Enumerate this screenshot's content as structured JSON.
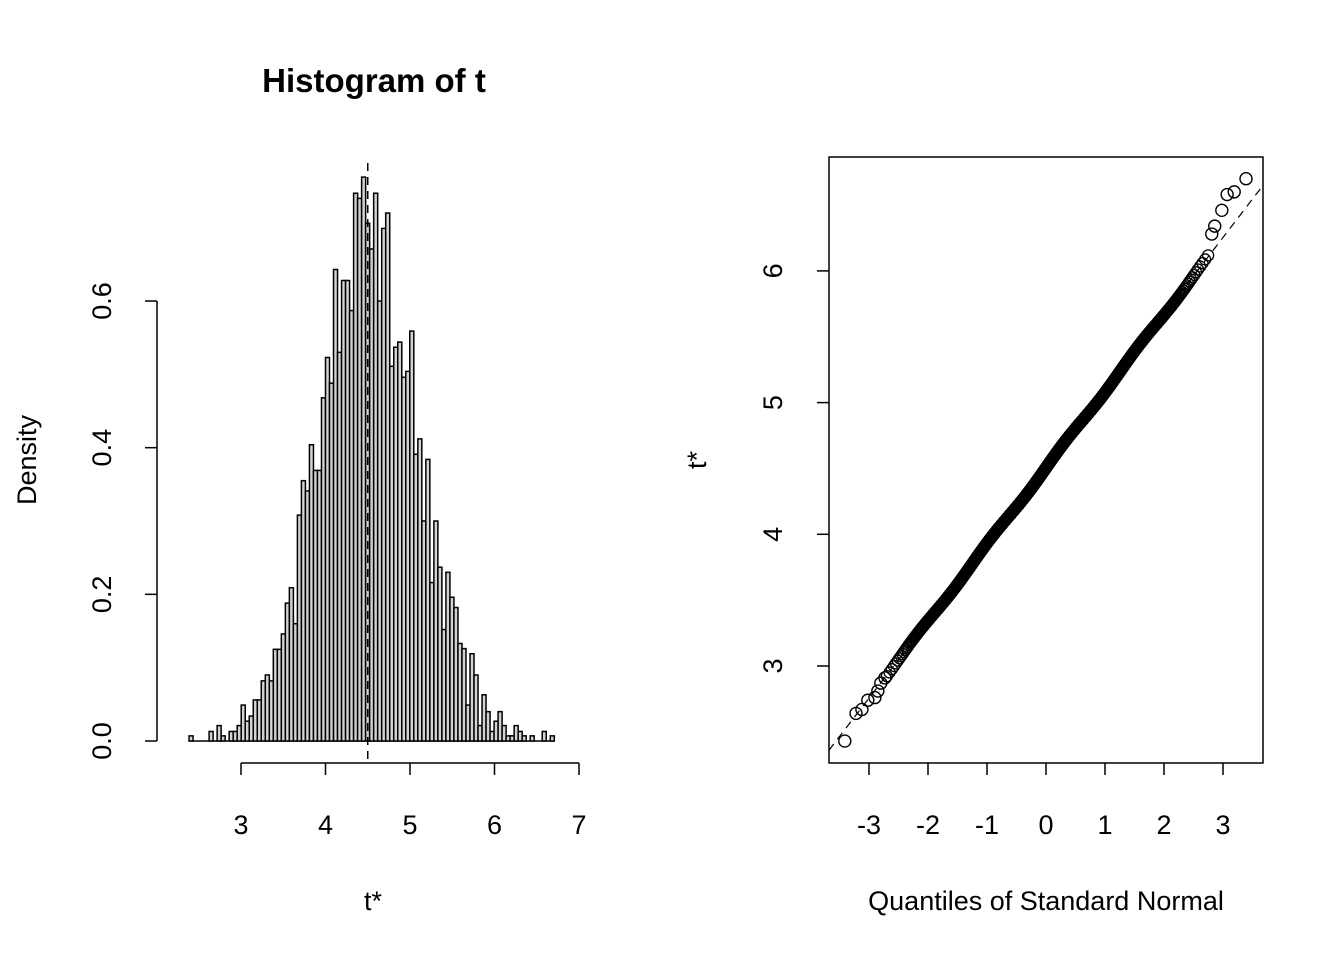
{
  "chart_data": [
    {
      "type": "bar",
      "title": "Histogram of t",
      "xlabel": "t*",
      "ylabel": "Density",
      "xticks": [
        "3",
        "4",
        "5",
        "6",
        "7"
      ],
      "yticks": [
        "0.0",
        "0.2",
        "0.4",
        "0.6"
      ],
      "xlim": [
        3,
        7
      ],
      "ylim": [
        0,
        0.6
      ],
      "breaks_start": 2.385,
      "bin_width": 0.0475,
      "density": [
        0.007,
        0,
        0,
        0,
        0,
        0.013,
        0,
        0.021,
        0.007,
        0,
        0.013,
        0.013,
        0.021,
        0.049,
        0.027,
        0.034,
        0.056,
        0.056,
        0.082,
        0.09,
        0.082,
        0.125,
        0.125,
        0.146,
        0.188,
        0.209,
        0.16,
        0.308,
        0.355,
        0.341,
        0.404,
        0.369,
        0.369,
        0.468,
        0.523,
        0.488,
        0.643,
        0.53,
        0.628,
        0.628,
        0.587,
        0.747,
        0.74,
        0.769,
        0.706,
        0.671,
        0.747,
        0.6,
        0.699,
        0.72,
        0.511,
        0.537,
        0.544,
        0.496,
        0.504,
        0.559,
        0.391,
        0.412,
        0.3,
        0.384,
        0.216,
        0.3,
        0.237,
        0.152,
        0.23,
        0.196,
        0.182,
        0.133,
        0.126,
        0.049,
        0.119,
        0.09,
        0.021,
        0.063,
        0.04,
        0.013,
        0.027,
        0.04,
        0.021,
        0.007,
        0.007,
        0.021,
        0.013,
        0.007,
        0,
        0.007,
        0,
        0,
        0.013,
        0,
        0.007
      ],
      "reference_line_x": 4.5,
      "bar_fill": "#d3d3d3",
      "grid": false
    },
    {
      "type": "scatter",
      "title": "",
      "xlabel": "Quantiles of Standard Normal",
      "ylabel": "t*",
      "xticks": [
        "-3",
        "-2",
        "-1",
        "0",
        "1",
        "2",
        "3"
      ],
      "yticks": [
        "3",
        "4",
        "5",
        "6"
      ],
      "xlim": [
        -3.68,
        3.68
      ],
      "ylim": [
        2.263,
        6.866
      ],
      "qq_line": {
        "intercept": 4.505,
        "slope": 0.583
      },
      "tail_points": [
        [
          -3.41,
          2.43
        ],
        [
          -3.22,
          2.64
        ],
        [
          -3.12,
          2.67
        ],
        [
          -3.02,
          2.74
        ],
        [
          -2.9,
          2.76
        ],
        [
          -2.85,
          2.81
        ],
        [
          -2.8,
          2.87
        ],
        [
          -2.73,
          2.91
        ],
        [
          2.81,
          6.28
        ],
        [
          2.86,
          6.34
        ],
        [
          2.98,
          6.46
        ],
        [
          3.07,
          6.58
        ],
        [
          3.19,
          6.6
        ],
        [
          3.39,
          6.7
        ]
      ],
      "marker": "open-circle",
      "grid": false
    }
  ]
}
